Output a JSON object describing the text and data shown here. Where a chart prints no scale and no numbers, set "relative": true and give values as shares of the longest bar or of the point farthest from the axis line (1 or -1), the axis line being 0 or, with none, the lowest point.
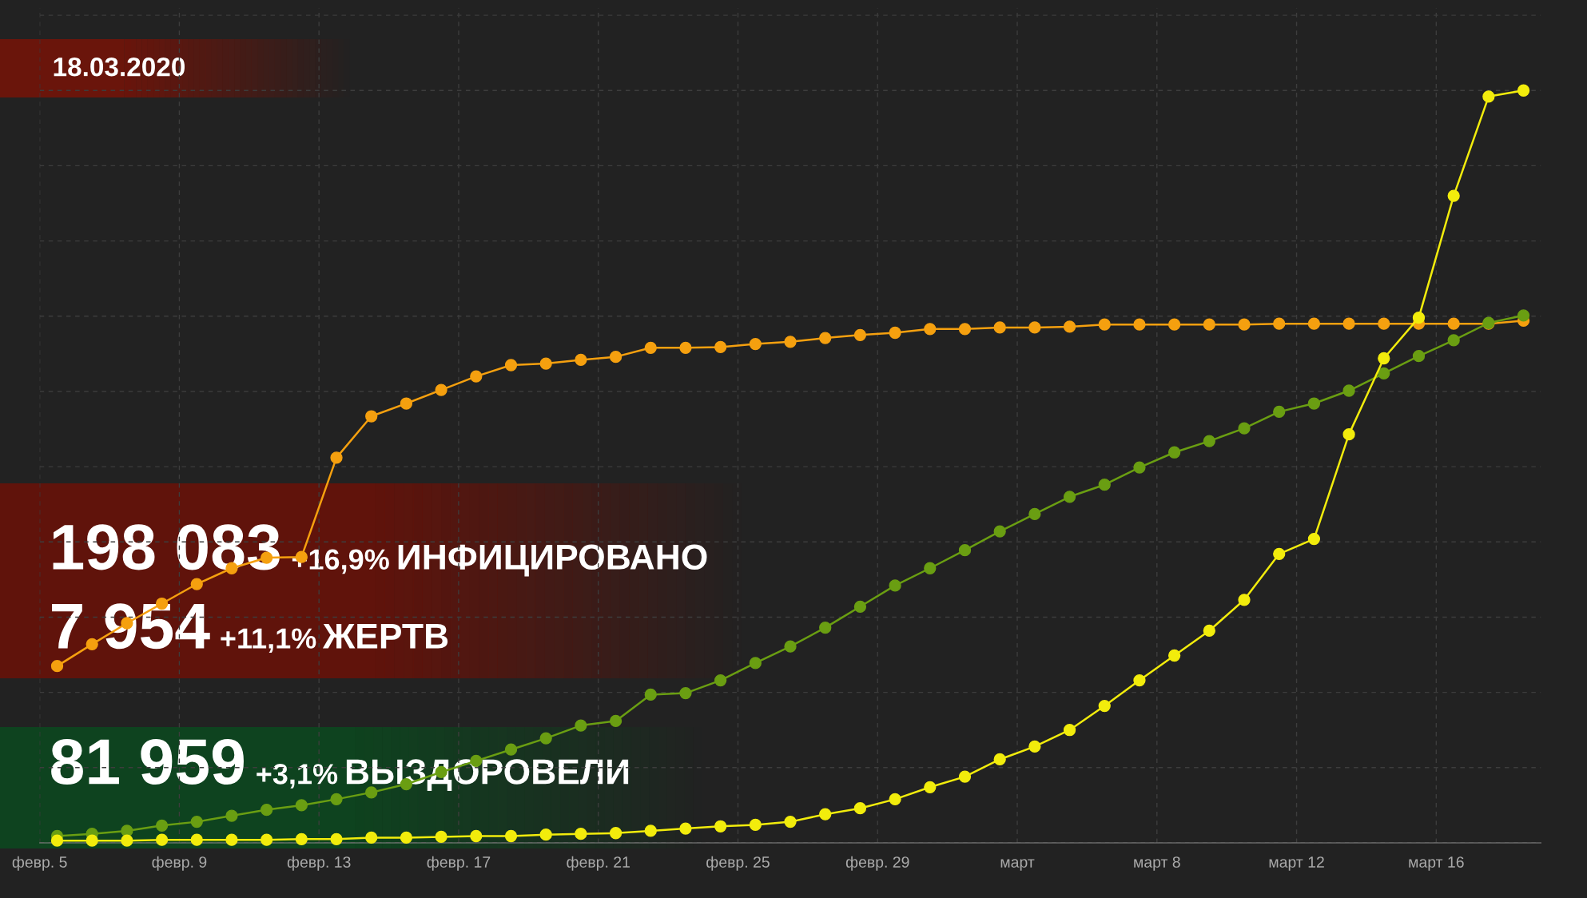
{
  "chart_data": {
    "type": "line",
    "relative": true,
    "marker": "circle",
    "line_style": "solid",
    "grid": true,
    "tick_labels": "x",
    "x": [
      "2020-02-05T12:00",
      "2020-02-06T12:00",
      "2020-02-07T12:00",
      "2020-02-08T12:00",
      "2020-02-09T12:00",
      "2020-02-10T12:00",
      "2020-02-11T12:00",
      "2020-02-12T12:00",
      "2020-02-13T12:00",
      "2020-02-14T12:00",
      "2020-02-15T12:00",
      "2020-02-16T12:00",
      "2020-02-17T12:00",
      "2020-02-18T12:00",
      "2020-02-19T12:00",
      "2020-02-20T12:00",
      "2020-02-21T12:00",
      "2020-02-22T12:00",
      "2020-02-23T12:00",
      "2020-02-24T12:00",
      "2020-02-25T12:00",
      "2020-02-26T12:00",
      "2020-02-27T12:00",
      "2020-02-28T12:00",
      "2020-02-29T12:00",
      "2020-03-01T12:00",
      "2020-03-02T12:00",
      "2020-03-03T12:00",
      "2020-03-04T12:00",
      "2020-03-05T12:00",
      "2020-03-06T12:00",
      "2020-03-07T12:00",
      "2020-03-08T12:00",
      "2020-03-09T12:00",
      "2020-03-10T12:00",
      "2020-03-11T12:00",
      "2020-03-12T12:00",
      "2020-03-13T12:00",
      "2020-03-14T12:00",
      "2020-03-15T12:00",
      "2020-03-16T12:00",
      "2020-03-17T12:00",
      "2020-03-18T12:00"
    ],
    "xlim": [
      "2020-02-05",
      "2020-03-19"
    ],
    "xticks": [
      {
        "value": "2020-02-05",
        "label": "февр. 5"
      },
      {
        "value": "2020-02-09",
        "label": "февр. 9"
      },
      {
        "value": "2020-02-13",
        "label": "февр. 13"
      },
      {
        "value": "2020-02-17",
        "label": "февр. 17"
      },
      {
        "value": "2020-02-21",
        "label": "февр. 21"
      },
      {
        "value": "2020-02-25",
        "label": "февр. 25"
      },
      {
        "value": "2020-02-29",
        "label": "февр. 29"
      },
      {
        "value": "2020-03-04",
        "label": "март"
      },
      {
        "value": "2020-03-08",
        "label": "март 8"
      },
      {
        "value": "2020-03-12",
        "label": "март 12"
      },
      {
        "value": "2020-03-16",
        "label": "март 16"
      }
    ],
    "series": [
      {
        "color": "#f5a00f",
        "values": [
          0.235,
          0.264,
          0.292,
          0.318,
          0.344,
          0.365,
          0.379,
          0.38,
          0.512,
          0.567,
          0.584,
          0.602,
          0.62,
          0.635,
          0.637,
          0.642,
          0.646,
          0.658,
          0.658,
          0.659,
          0.663,
          0.666,
          0.671,
          0.675,
          0.678,
          0.683,
          0.683,
          0.685,
          0.685,
          0.686,
          0.689,
          0.689,
          0.689,
          0.689,
          0.689,
          0.69,
          0.69,
          0.69,
          0.69,
          0.69,
          0.69,
          0.69,
          0.694
        ]
      },
      {
        "color": "#6a9e12",
        "values": [
          0.009,
          0.012,
          0.016,
          0.023,
          0.028,
          0.036,
          0.044,
          0.05,
          0.058,
          0.067,
          0.078,
          0.094,
          0.109,
          0.124,
          0.139,
          0.156,
          0.162,
          0.197,
          0.199,
          0.216,
          0.239,
          0.261,
          0.286,
          0.314,
          0.342,
          0.365,
          0.389,
          0.414,
          0.437,
          0.46,
          0.476,
          0.499,
          0.519,
          0.534,
          0.551,
          0.573,
          0.584,
          0.601,
          0.624,
          0.647,
          0.668,
          0.691,
          0.701
        ]
      },
      {
        "color": "#f2ec0c",
        "values": [
          0.003,
          0.003,
          0.003,
          0.004,
          0.004,
          0.004,
          0.004,
          0.005,
          0.005,
          0.007,
          0.007,
          0.008,
          0.009,
          0.009,
          0.011,
          0.012,
          0.013,
          0.016,
          0.019,
          0.022,
          0.024,
          0.028,
          0.038,
          0.046,
          0.058,
          0.074,
          0.088,
          0.111,
          0.128,
          0.15,
          0.182,
          0.216,
          0.249,
          0.282,
          0.323,
          0.384,
          0.404,
          0.543,
          0.644,
          0.698,
          0.86,
          0.992,
          1
        ]
      }
    ],
    "annotations": [
      "18.03.2020",
      "198 083",
      "+16,9%",
      "ИНФИЦИРОВАНО",
      "7 954",
      "+11,1%",
      "ЖЕРТВ",
      "81 959",
      "+3,1%",
      "ВЫЗДОРОВЕЛИ"
    ]
  }
}
